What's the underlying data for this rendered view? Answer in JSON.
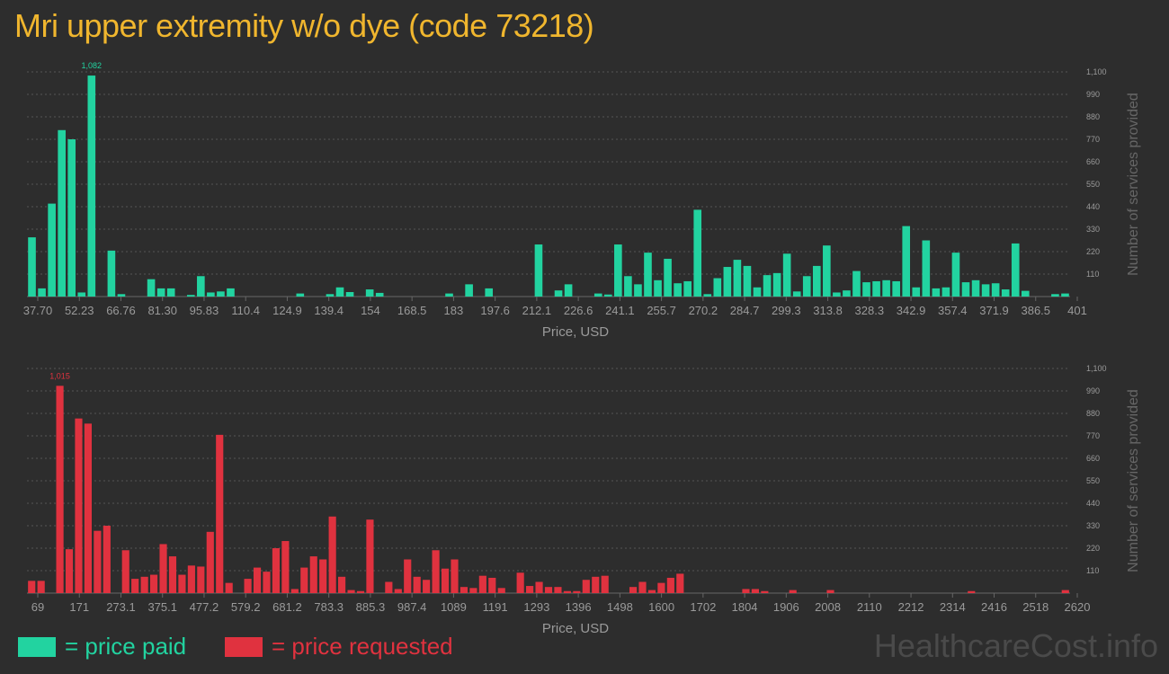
{
  "title": "Mri upper extremity w/o dye (code 73218)",
  "legend": {
    "paid": "= price paid",
    "requested": "= price requested"
  },
  "watermark": "HealthcareCost.info",
  "colors": {
    "background": "#2d2d2d",
    "paid": "#22d3a0",
    "requested": "#e0323f",
    "title": "#f0b62e",
    "axis_text": "#9a9a9a",
    "grid": "#555555"
  },
  "chart_data": [
    {
      "type": "bar",
      "name": "price paid",
      "color": "#22d3a0",
      "xlabel": "Price, USD",
      "ylabel": "Number of services provided",
      "ylim": [
        0,
        1100
      ],
      "y_ticks": [
        110,
        220,
        330,
        440,
        550,
        660,
        770,
        880,
        990,
        1100
      ],
      "y_tick_labels": [
        "110",
        "220",
        "330",
        "440",
        "550",
        "660",
        "770",
        "880",
        "990",
        "1,100"
      ],
      "x_tick_labels": [
        "37.70",
        "52.23",
        "66.76",
        "81.30",
        "95.83",
        "110.4",
        "124.9",
        "139.4",
        "154",
        "168.5",
        "183",
        "197.6",
        "212.1",
        "226.6",
        "241.1",
        "255.7",
        "270.2",
        "284.7",
        "299.3",
        "313.8",
        "328.3",
        "342.9",
        "357.4",
        "371.9",
        "386.5",
        "401"
      ],
      "max_label": "1,082",
      "grid": true,
      "values": [
        290,
        40,
        455,
        815,
        770,
        20,
        1082,
        0,
        225,
        12,
        0,
        0,
        85,
        40,
        40,
        0,
        8,
        100,
        20,
        25,
        40,
        0,
        0,
        0,
        0,
        0,
        0,
        15,
        0,
        0,
        12,
        45,
        22,
        0,
        35,
        18,
        0,
        0,
        0,
        0,
        0,
        0,
        15,
        0,
        60,
        0,
        40,
        0,
        0,
        0,
        0,
        255,
        0,
        30,
        60,
        0,
        0,
        15,
        10,
        255,
        100,
        60,
        215,
        80,
        185,
        65,
        75,
        425,
        12,
        90,
        145,
        180,
        150,
        45,
        105,
        115,
        210,
        25,
        100,
        150,
        250,
        20,
        30,
        125,
        70,
        75,
        80,
        75,
        345,
        45,
        275,
        40,
        45,
        215,
        70,
        80,
        60,
        65,
        35,
        260,
        28,
        0,
        0,
        12,
        15
      ]
    },
    {
      "type": "bar",
      "name": "price requested",
      "color": "#e0323f",
      "xlabel": "Price, USD",
      "ylabel": "Number of services provided",
      "ylim": [
        0,
        1100
      ],
      "y_ticks": [
        110,
        220,
        330,
        440,
        550,
        660,
        770,
        880,
        990,
        1100
      ],
      "y_tick_labels": [
        "110",
        "220",
        "330",
        "440",
        "550",
        "660",
        "770",
        "880",
        "990",
        "1,100"
      ],
      "x_tick_labels": [
        "69",
        "171",
        "273.1",
        "375.1",
        "477.2",
        "579.2",
        "681.2",
        "783.3",
        "885.3",
        "987.4",
        "1089",
        "1191",
        "1293",
        "1396",
        "1498",
        "1600",
        "1702",
        "1804",
        "1906",
        "2008",
        "2110",
        "2212",
        "2314",
        "2416",
        "2518",
        "2620"
      ],
      "max_label": "1,015",
      "grid": true,
      "values": [
        60,
        60,
        0,
        1015,
        215,
        855,
        830,
        305,
        330,
        0,
        210,
        70,
        80,
        90,
        240,
        180,
        90,
        135,
        130,
        300,
        775,
        50,
        0,
        70,
        125,
        105,
        220,
        255,
        20,
        125,
        180,
        165,
        375,
        80,
        15,
        10,
        360,
        0,
        55,
        20,
        165,
        80,
        65,
        210,
        120,
        165,
        30,
        25,
        85,
        75,
        25,
        0,
        100,
        35,
        55,
        30,
        30,
        10,
        10,
        65,
        80,
        85,
        0,
        0,
        30,
        55,
        15,
        50,
        75,
        95,
        0,
        0,
        0,
        0,
        0,
        0,
        20,
        20,
        10,
        0,
        0,
        15,
        0,
        0,
        0,
        15,
        0,
        0,
        0,
        0,
        0,
        0,
        0,
        0,
        0,
        0,
        0,
        0,
        0,
        0,
        10,
        0,
        0,
        0,
        0,
        0,
        0,
        0,
        0,
        0,
        15
      ]
    }
  ]
}
